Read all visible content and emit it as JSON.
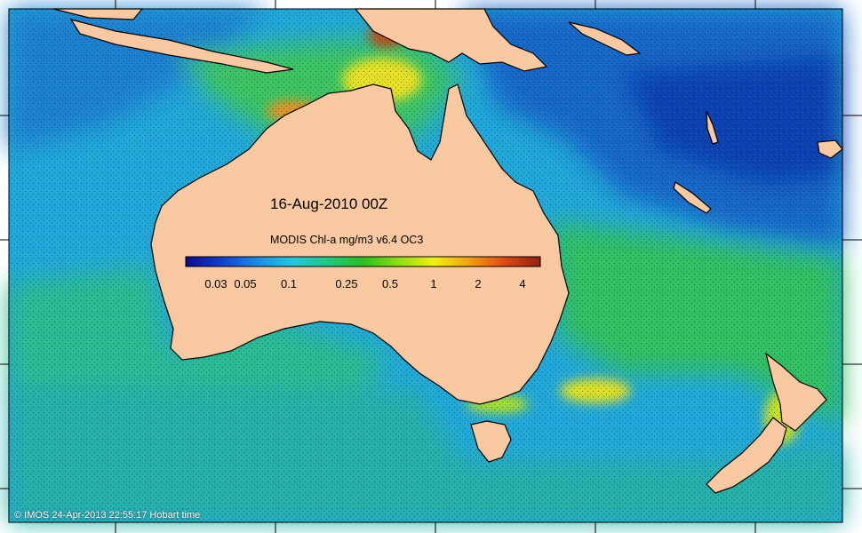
{
  "map": {
    "title": "16-Aug-2010 00Z",
    "product": "MODIS Chl-a mg/m3 v6.4 OC3",
    "credit": "© IMOS 24-Apr-2013 22:55:17 Hobart time",
    "colors": {
      "land": "#f8c8a0",
      "coast": "#000000",
      "open_ocean": "#22a8d8",
      "deep_blue": "#1040b0",
      "productive": "#30c060",
      "bloom": "#e0e020",
      "high": "#c03010"
    }
  },
  "colorbar": {
    "ticks": [
      "0.03",
      "0.05",
      "0.1",
      "0.25",
      "0.5",
      "1",
      "2",
      "4"
    ],
    "stops": [
      "#0a0a8c",
      "#0f3fd0",
      "#1a8be8",
      "#20c8e0",
      "#22c882",
      "#28c020",
      "#8ede10",
      "#f0f010",
      "#f0a010",
      "#e04810",
      "#902010"
    ]
  }
}
